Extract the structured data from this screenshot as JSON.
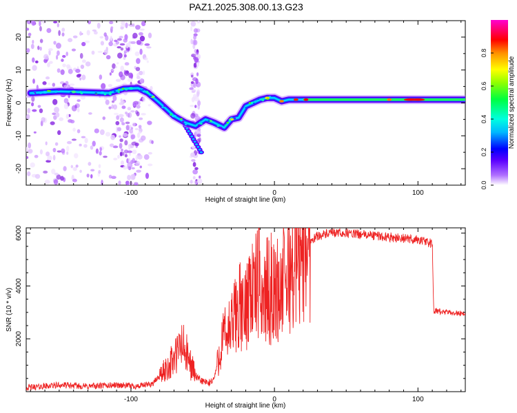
{
  "title": "PAZ1.2025.308.00.13.G23",
  "chart_data": [
    {
      "type": "heatmap",
      "title": "PAZ1.2025.308.00.13.G23",
      "xlabel": "Height of straight line (km)",
      "ylabel": "Frequency (Hz)",
      "xlim": [
        -173,
        133
      ],
      "ylim": [
        -25,
        25
      ],
      "xticks": [
        -100,
        0,
        100
      ],
      "yticks": [
        -20,
        -10,
        0,
        10,
        20
      ],
      "ridge": {
        "x": [
          -170,
          -150,
          -130,
          -115,
          -105,
          -95,
          -88,
          -80,
          -70,
          -62,
          -55,
          -48,
          -42,
          -35,
          -30,
          -25,
          -20,
          -15,
          -10,
          -5,
          0,
          5,
          10,
          20,
          30,
          50,
          70,
          90,
          110,
          133
        ],
        "y": [
          3,
          3.5,
          3.2,
          3,
          4.3,
          4.5,
          3,
          0,
          -4,
          -6,
          -7,
          -5,
          -6,
          -7.5,
          -5,
          -4.5,
          -1,
          0,
          1,
          1.5,
          1.5,
          0.5,
          1,
          1,
          1,
          1,
          1,
          1,
          1,
          1
        ]
      },
      "colorbar": {
        "label": "Normalized spectral amplitude",
        "ticks": [
          0.0,
          0.2,
          0.4,
          0.6,
          0.8
        ],
        "range": [
          0,
          1
        ]
      }
    },
    {
      "type": "line",
      "xlabel": "Height of straight line (km)",
      "ylabel": "SNR (10 * v/v)",
      "xlim": [
        -173,
        133
      ],
      "ylim": [
        0,
        6200
      ],
      "xticks": [
        -100,
        0,
        100
      ],
      "yticks": [
        2000,
        4000,
        6000
      ],
      "color": "#ee2222",
      "x": [
        -173,
        -150,
        -130,
        -110,
        -95,
        -85,
        -78,
        -72,
        -68,
        -65,
        -62,
        -60,
        -57,
        -54,
        -50,
        -46,
        -42,
        -38,
        -36,
        -33,
        -30,
        -27,
        -24,
        -21,
        -18,
        -14,
        -11,
        -8,
        -5,
        -2,
        0,
        5,
        10,
        15,
        20,
        25,
        30,
        40,
        50,
        60,
        70,
        80,
        90,
        100,
        110,
        111,
        112,
        120,
        133
      ],
      "y": [
        150,
        250,
        200,
        250,
        200,
        300,
        700,
        1100,
        1400,
        1800,
        1500,
        1200,
        900,
        500,
        400,
        300,
        500,
        1500,
        2000,
        2200,
        2400,
        3000,
        3200,
        2800,
        4000,
        3800,
        4200,
        3600,
        3800,
        3900,
        3700,
        4000,
        4500,
        5000,
        5400,
        5700,
        5900,
        6000,
        6000,
        5950,
        5900,
        5850,
        5800,
        5750,
        5600,
        3000,
        3050,
        3000,
        2950
      ]
    }
  ]
}
